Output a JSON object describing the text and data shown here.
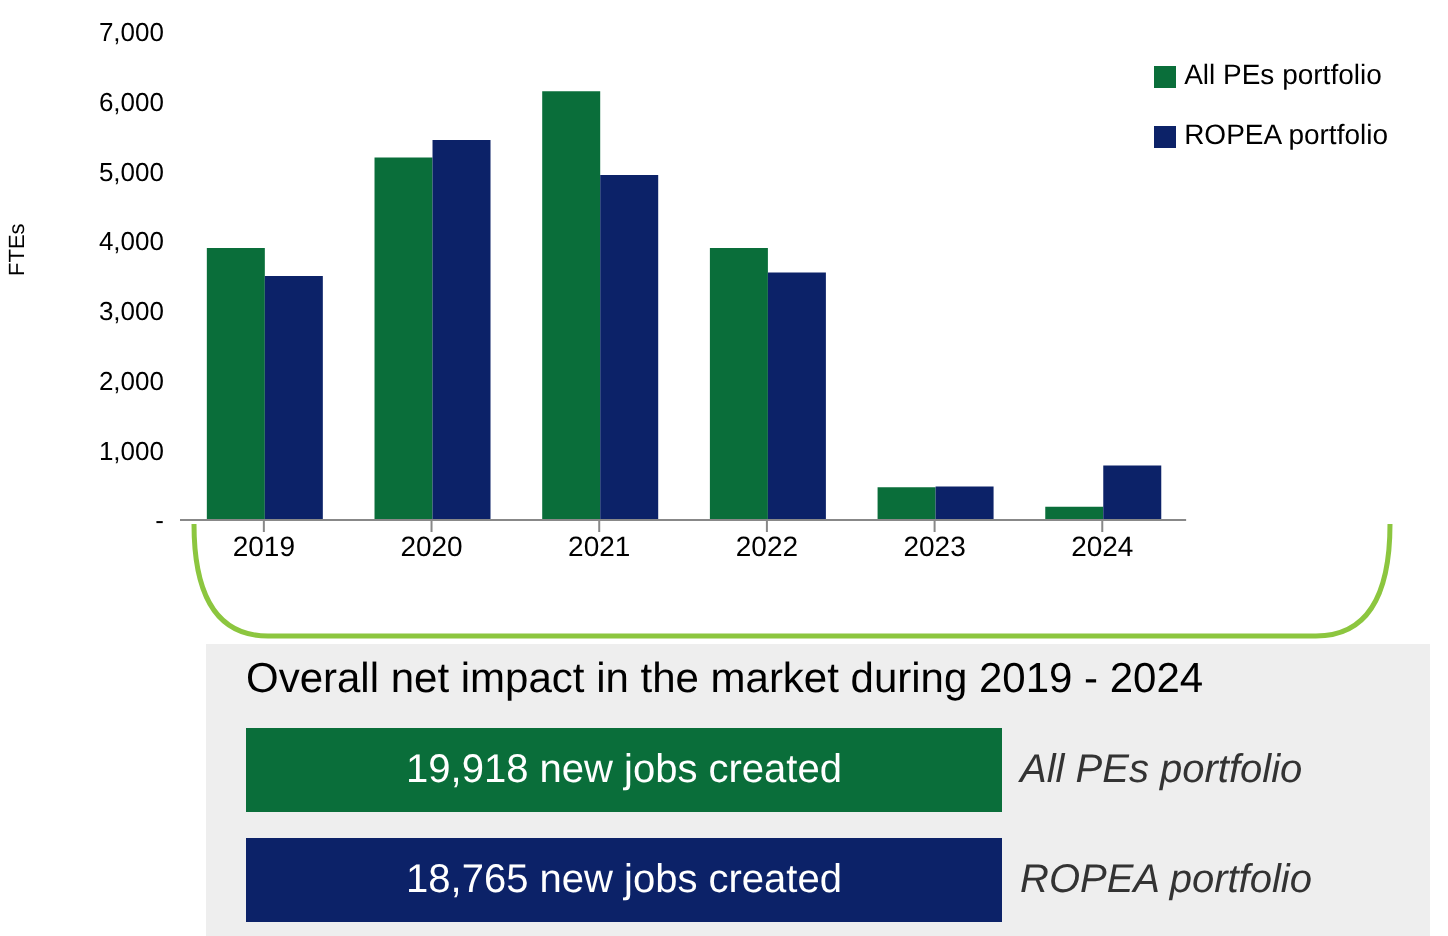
{
  "chart_data": {
    "type": "bar",
    "ylabel": "FTEs",
    "categories": [
      "2019",
      "2020",
      "2021",
      "2022",
      "2023",
      "2024"
    ],
    "series": [
      {
        "name": "All PEs portfolio",
        "color": "#0a6e3a",
        "values": [
          3900,
          5200,
          6150,
          3900,
          470,
          190
        ]
      },
      {
        "name": "ROPEA portfolio",
        "color": "#0c2268",
        "values": [
          3500,
          5450,
          4950,
          3550,
          480,
          780
        ]
      }
    ],
    "ylim": [
      0,
      7000
    ],
    "yticks": [
      {
        "value": 0,
        "label": "-"
      },
      {
        "value": 1000,
        "label": "1,000"
      },
      {
        "value": 2000,
        "label": "2,000"
      },
      {
        "value": 3000,
        "label": "3,000"
      },
      {
        "value": 4000,
        "label": "4,000"
      },
      {
        "value": 5000,
        "label": "5,000"
      },
      {
        "value": 6000,
        "label": "6,000"
      },
      {
        "value": 7000,
        "label": "7,000"
      }
    ],
    "grid": false,
    "legend": "top right",
    "annotations": [
      "Overall net impact in the market during 2019 - 2024",
      "19,918 new jobs created",
      "All PEs portfolio",
      "18,765 new jobs created",
      "ROPEA portfolio"
    ]
  }
}
